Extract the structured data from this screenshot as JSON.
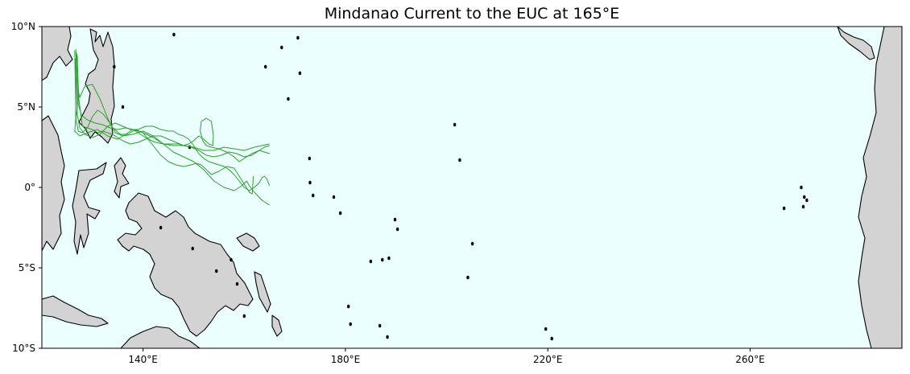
{
  "title": "Mindanao Current to the EUC at 165°E",
  "colors": {
    "ocean": "#ebffff",
    "land": "#d3d3d3",
    "coast": "#000000",
    "trajectory": "#2ca02c"
  },
  "map": {
    "projection": "PlateCarree",
    "lon_range": [
      120,
      290
    ],
    "lat_range": [
      -10,
      10
    ],
    "x_ticks": [
      {
        "value": 140,
        "label": "140°E"
      },
      {
        "value": 180,
        "label": "180°E"
      },
      {
        "value": 220,
        "label": "220°E"
      },
      {
        "value": 260,
        "label": "260°E"
      }
    ],
    "y_ticks": [
      {
        "value": 10,
        "label": "10°N"
      },
      {
        "value": 5,
        "label": "5°N"
      },
      {
        "value": 0,
        "label": "0°"
      },
      {
        "value": -5,
        "label": "5°S"
      },
      {
        "value": -10,
        "label": "10°S"
      }
    ]
  },
  "chart_data": {
    "type": "line",
    "title": "Mindanao Current to the EUC at 165°E",
    "xlim": [
      120,
      290
    ],
    "ylim": [
      -10,
      10
    ],
    "series": [
      {
        "x": [
          126.7,
          126.9,
          127.0,
          126.6,
          126.5,
          127.5,
          129.0,
          131.0,
          133.0,
          135.0,
          136.5,
          138.0,
          140.0,
          142.0,
          144.0,
          146.0,
          148.0,
          150.0,
          152.0,
          154.0,
          156.0,
          158.0,
          160.0,
          162.0,
          163.5,
          165.0
        ],
        "y": [
          8.6,
          7.0,
          5.0,
          4.0,
          3.5,
          3.2,
          3.4,
          3.6,
          3.2,
          3.0,
          3.3,
          3.6,
          3.4,
          3.1,
          2.7,
          2.6,
          2.6,
          2.5,
          2.3,
          2.3,
          2.5,
          2.4,
          2.3,
          2.5,
          2.6,
          2.7
        ]
      },
      {
        "x": [
          126.8,
          127.0,
          127.2,
          127.5,
          128.5,
          130.0,
          131.5,
          133.0,
          134.5,
          136.0,
          138.0,
          140.0,
          142.0,
          144.0,
          146.0,
          148.0,
          150.0,
          152.0,
          154.0,
          156.0,
          158.0,
          159.5,
          160.5,
          161.0,
          162.0,
          163.5,
          165.0
        ],
        "y": [
          8.4,
          7.5,
          6.0,
          5.6,
          6.3,
          6.4,
          5.5,
          4.3,
          3.4,
          3.2,
          3.3,
          3.5,
          3.2,
          2.7,
          2.2,
          1.9,
          1.6,
          1.1,
          0.4,
          0.0,
          -0.2,
          0.1,
          0.4,
          0.1,
          -0.3,
          -0.8,
          -1.1
        ]
      },
      {
        "x": [
          126.9,
          127.1,
          127.3,
          128.0,
          129.0,
          130.0,
          131.0,
          132.0,
          133.0,
          134.0,
          135.5,
          137.0,
          138.5,
          140.0,
          142.0,
          143.5,
          145.0,
          146.5,
          148.0,
          149.5,
          150.5,
          151.5,
          152.5,
          153.5,
          155.0,
          156.5,
          158.0,
          159.0,
          160.0,
          161.0,
          161.6,
          161.8
        ],
        "y": [
          8.3,
          7.0,
          5.5,
          3.8,
          3.7,
          4.4,
          4.8,
          4.6,
          4.2,
          3.7,
          3.3,
          3.3,
          3.6,
          3.4,
          2.6,
          2.0,
          1.6,
          1.4,
          1.3,
          1.4,
          1.5,
          1.4,
          1.1,
          0.8,
          1.0,
          1.3,
          1.2,
          0.7,
          0.2,
          -0.3,
          -0.4,
          0.7
        ]
      },
      {
        "x": [
          127.0,
          127.1,
          127.2,
          127.8,
          129.0,
          130.5,
          132.0,
          133.5,
          135.0,
          136.5,
          138.0,
          139.5,
          141.0,
          142.5,
          144.0,
          145.5,
          147.0,
          148.0,
          149.0,
          150.0,
          151.0,
          152.0,
          153.0,
          153.8,
          153.9,
          153.5,
          152.5,
          151.5,
          151.3,
          151.8,
          152.5,
          153.5,
          155.0,
          156.5,
          158.0,
          159.0,
          160.0,
          161.5,
          163.0,
          164.0,
          165.0
        ],
        "y": [
          8.2,
          6.8,
          5.2,
          4.5,
          4.2,
          4.0,
          3.9,
          3.7,
          3.6,
          3.7,
          3.6,
          3.3,
          3.0,
          2.8,
          2.7,
          2.7,
          2.7,
          2.6,
          2.7,
          2.9,
          3.2,
          3.0,
          2.7,
          2.6,
          3.2,
          4.1,
          4.3,
          4.1,
          3.5,
          2.9,
          2.6,
          2.5,
          2.4,
          2.2,
          1.9,
          1.6,
          1.8,
          2.1,
          2.3,
          2.2,
          2.1
        ]
      },
      {
        "x": [
          126.6,
          126.8,
          127.0,
          127.5,
          128.5,
          130.0,
          131.5,
          133.0,
          134.5,
          136.0,
          137.5,
          139.0,
          140.5,
          142.0,
          143.5,
          145.0,
          146.0,
          147.0,
          148.0,
          149.0,
          150.0,
          151.0,
          152.0,
          153.0,
          154.0,
          155.0,
          156.0,
          157.0,
          158.0,
          159.0,
          160.0,
          161.0,
          162.0,
          163.0,
          163.5,
          164.0,
          164.5,
          165.0
        ],
        "y": [
          8.0,
          6.5,
          4.5,
          3.7,
          3.3,
          3.1,
          3.3,
          3.8,
          4.0,
          3.8,
          3.6,
          3.6,
          3.8,
          3.8,
          3.6,
          3.5,
          3.5,
          3.3,
          3.2,
          3.0,
          2.6,
          2.1,
          1.8,
          1.6,
          1.5,
          1.4,
          1.3,
          1.1,
          0.8,
          0.4,
          0.0,
          -0.2,
          0.0,
          0.3,
          0.6,
          0.7,
          0.5,
          0.1
        ]
      },
      {
        "x": [
          126.5,
          126.6,
          126.7,
          127.2,
          128.0,
          129.0,
          130.0,
          131.0,
          132.0,
          133.0,
          134.5,
          136.0,
          137.5,
          139.0,
          140.5,
          142.0,
          143.5,
          145.0,
          146.5,
          148.0,
          149.5,
          151.0,
          152.5,
          154.0,
          155.5,
          157.0,
          158.5,
          160.0,
          161.5,
          163.0,
          164.0,
          165.0
        ],
        "y": [
          8.5,
          6.5,
          4.3,
          3.5,
          3.4,
          3.7,
          3.6,
          3.4,
          3.5,
          3.4,
          3.2,
          2.9,
          2.7,
          2.8,
          3.0,
          3.2,
          3.2,
          3.0,
          2.8,
          2.6,
          2.5,
          2.3,
          2.0,
          1.9,
          2.0,
          2.2,
          2.1,
          1.9,
          2.0,
          2.3,
          2.5,
          2.6
        ]
      }
    ]
  }
}
